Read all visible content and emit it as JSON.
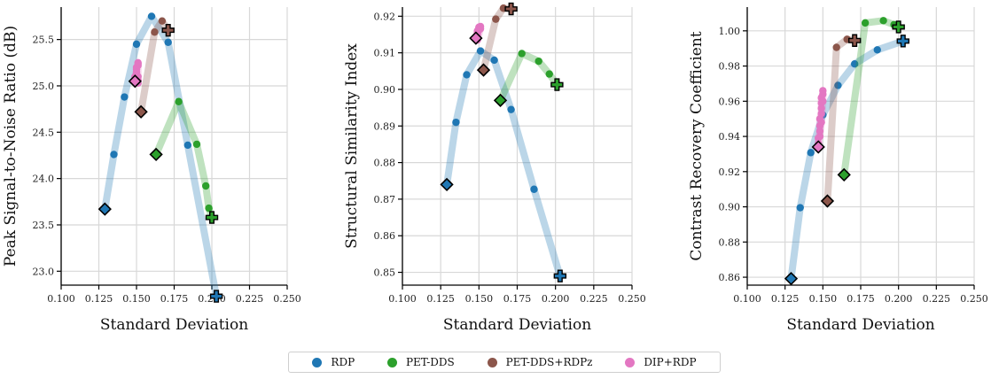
{
  "colors": {
    "RDP": "#1f77b4",
    "PET-DDS": "#2ca02c",
    "PET-DDS+RDPz": "#8c564b",
    "DIP+RDP": "#e377c2"
  },
  "legend": [
    {
      "name": "RDP",
      "color": "#1f77b4"
    },
    {
      "name": "PET-DDS",
      "color": "#2ca02c"
    },
    {
      "name": "PET-DDS+RDPz",
      "color": "#8c564b"
    },
    {
      "name": "DIP+RDP",
      "color": "#e377c2"
    }
  ],
  "chart_data": [
    {
      "type": "line",
      "xlabel": "Standard Deviation",
      "ylabel": "Peak Signal-to-Noise Ratio (dB)",
      "xlim": [
        0.1,
        0.25
      ],
      "ylim": [
        22.85,
        25.85
      ],
      "xticks": [
        "0.100",
        "0.125",
        "0.150",
        "0.175",
        "0.200",
        "0.225",
        "0.250"
      ],
      "yticks": [
        "23.0",
        "23.5",
        "24.0",
        "24.5",
        "25.0",
        "25.5"
      ],
      "grid": true,
      "series": [
        {
          "name": "RDP",
          "x": [
            0.129,
            0.135,
            0.142,
            0.15,
            0.16,
            0.171,
            0.184,
            0.203
          ],
          "y": [
            23.67,
            24.26,
            24.88,
            25.45,
            25.75,
            25.47,
            24.36,
            22.73
          ]
        },
        {
          "name": "PET-DDS",
          "x": [
            0.163,
            0.178,
            0.19,
            0.196,
            0.198,
            0.2
          ],
          "y": [
            24.26,
            24.83,
            24.37,
            23.92,
            23.68,
            23.58
          ]
        },
        {
          "name": "PET-DDS+RDPz",
          "x": [
            0.153,
            0.162,
            0.167,
            0.171
          ],
          "y": [
            24.72,
            25.58,
            25.7,
            25.6
          ]
        },
        {
          "name": "DIP+RDP",
          "x": [
            0.149,
            0.149,
            0.15,
            0.15,
            0.15,
            0.151,
            0.151,
            0.151,
            0.151,
            0.151,
            0.151
          ],
          "y": [
            25.05,
            25.1,
            25.15,
            25.18,
            25.2,
            25.22,
            25.24,
            25.25,
            25.1,
            25.06,
            25.03
          ]
        }
      ]
    },
    {
      "type": "line",
      "xlabel": "Standard Deviation",
      "ylabel": "Structural Similarity Index",
      "xlim": [
        0.1,
        0.25
      ],
      "ylim": [
        0.8465,
        0.9225
      ],
      "xticks": [
        "0.100",
        "0.125",
        "0.150",
        "0.175",
        "0.200",
        "0.225",
        "0.250"
      ],
      "yticks": [
        "0.85",
        "0.86",
        "0.87",
        "0.88",
        "0.89",
        "0.90",
        "0.91",
        "0.92"
      ],
      "grid": true,
      "series": [
        {
          "name": "RDP",
          "x": [
            0.129,
            0.135,
            0.142,
            0.151,
            0.16,
            0.171,
            0.186,
            0.203
          ],
          "y": [
            0.874,
            0.891,
            0.904,
            0.9105,
            0.908,
            0.8945,
            0.8727,
            0.849
          ]
        },
        {
          "name": "PET-DDS",
          "x": [
            0.164,
            0.178,
            0.189,
            0.196,
            0.201
          ],
          "y": [
            0.897,
            0.9098,
            0.9077,
            0.9042,
            0.9013
          ]
        },
        {
          "name": "PET-DDS+RDPz",
          "x": [
            0.153,
            0.161,
            0.166,
            0.171
          ],
          "y": [
            0.9053,
            0.9192,
            0.9222,
            0.922
          ]
        },
        {
          "name": "DIP+RDP",
          "x": [
            0.148,
            0.148,
            0.149,
            0.149,
            0.149,
            0.15,
            0.15,
            0.15,
            0.15,
            0.151,
            0.151,
            0.149
          ],
          "y": [
            0.914,
            0.9145,
            0.915,
            0.9155,
            0.916,
            0.9162,
            0.9165,
            0.9168,
            0.917,
            0.9172,
            0.9166,
            0.9135
          ]
        }
      ]
    },
    {
      "type": "line",
      "xlabel": "Standard Deviation",
      "ylabel": "Contrast Recovery Coefficient",
      "xlim": [
        0.1,
        0.25
      ],
      "ylim": [
        0.8555,
        1.0135
      ],
      "xticks": [
        "0.100",
        "0.125",
        "0.150",
        "0.175",
        "0.200",
        "0.225",
        "0.250"
      ],
      "yticks": [
        "0.86",
        "0.88",
        "0.90",
        "0.92",
        "0.94",
        "0.96",
        "0.98",
        "1.00"
      ],
      "grid": true,
      "series": [
        {
          "name": "RDP",
          "x": [
            0.129,
            0.135,
            0.142,
            0.15,
            0.16,
            0.171,
            0.186,
            0.203
          ],
          "y": [
            0.8592,
            0.8995,
            0.9308,
            0.9522,
            0.969,
            0.9812,
            0.9892,
            0.9942
          ]
        },
        {
          "name": "PET-DDS",
          "x": [
            0.164,
            0.178,
            0.19,
            0.197,
            0.2
          ],
          "y": [
            0.9182,
            1.0045,
            1.0058,
            1.0035,
            1.0022
          ]
        },
        {
          "name": "PET-DDS+RDPz",
          "x": [
            0.153,
            0.159,
            0.166,
            0.171
          ],
          "y": [
            0.9033,
            0.9906,
            0.9952,
            0.9945
          ]
        },
        {
          "name": "DIP+RDP",
          "x": [
            0.147,
            0.147,
            0.148,
            0.148,
            0.148,
            0.149,
            0.149,
            0.149,
            0.149,
            0.15,
            0.15,
            0.15,
            0.149,
            0.148,
            0.147
          ],
          "y": [
            0.934,
            0.939,
            0.943,
            0.946,
            0.95,
            0.953,
            0.956,
            0.959,
            0.962,
            0.964,
            0.966,
            0.96,
            0.948,
            0.94,
            0.936
          ]
        }
      ]
    }
  ]
}
